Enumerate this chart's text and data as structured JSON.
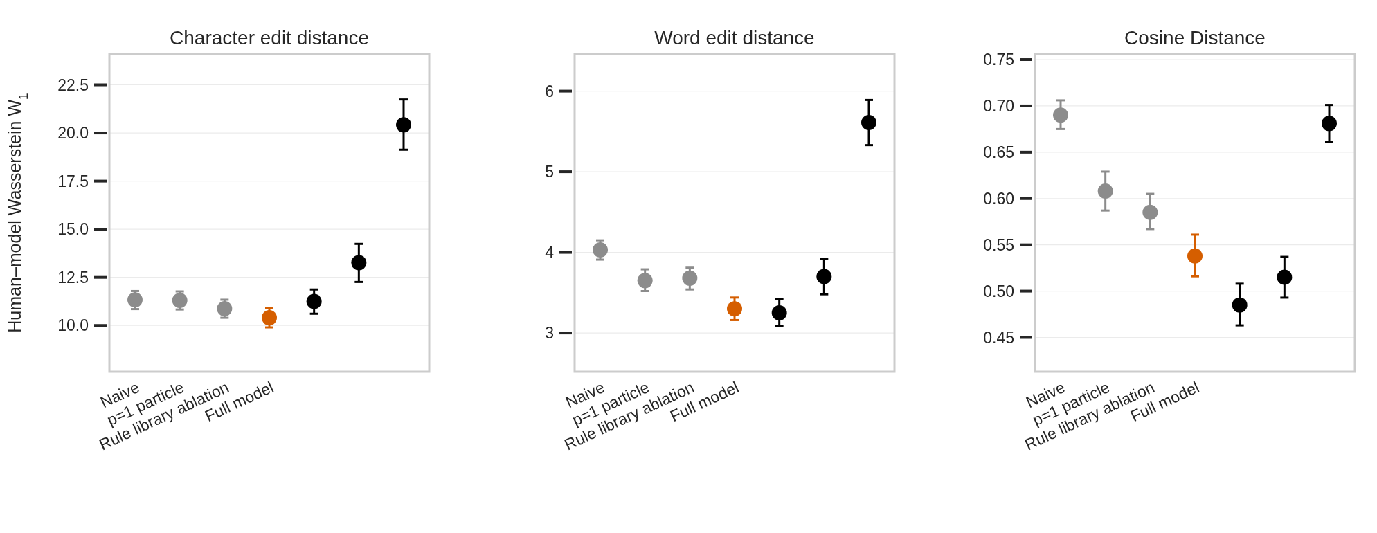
{
  "chart_data": [
    {
      "type": "scatter",
      "title": "Character edit distance",
      "ylabel": "Human–model Wasserstein W$_{1}$",
      "categories": [
        "Naive",
        "p=1 particle",
        "Rule library ablation",
        "Full model",
        null,
        null,
        null
      ],
      "marker": "circle",
      "grid": "y",
      "series": [
        {
          "colors": [
            "#8c8c8c",
            "#8c8c8c",
            "#8c8c8c",
            "#d55e00",
            "#000000",
            "#000000",
            "#000000"
          ],
          "values": [
            11.33,
            11.3,
            10.87,
            10.4,
            11.25,
            13.26,
            20.42
          ],
          "errors": [
            [
              10.85,
              11.79
            ],
            [
              10.83,
              11.77
            ],
            [
              10.4,
              11.34
            ],
            [
              9.9,
              10.9
            ],
            [
              10.61,
              11.87
            ],
            [
              12.26,
              14.24
            ],
            [
              19.13,
              21.74
            ]
          ]
        }
      ],
      "ylim": [
        7.6,
        24.1
      ],
      "yticks": [
        {
          "value": 10,
          "label": "10.0"
        },
        12.5,
        {
          "value": 15,
          "label": "15.0"
        },
        17.5,
        {
          "value": 20,
          "label": "20.0"
        },
        22.5
      ]
    },
    {
      "type": "scatter",
      "title": "Word edit distance",
      "categories": [
        "Naive",
        "p=1 particle",
        "Rule library ablation",
        "Full model",
        null,
        null,
        null
      ],
      "marker": "circle",
      "grid": "y",
      "series": [
        {
          "colors": [
            "#8c8c8c",
            "#8c8c8c",
            "#8c8c8c",
            "#d55e00",
            "#000000",
            "#000000",
            "#000000"
          ],
          "values": [
            4.03,
            3.65,
            3.68,
            3.3,
            3.25,
            3.7,
            5.61
          ],
          "errors": [
            [
              3.91,
              4.15
            ],
            [
              3.52,
              3.79
            ],
            [
              3.54,
              3.81
            ],
            [
              3.16,
              3.44
            ],
            [
              3.09,
              3.42
            ],
            [
              3.48,
              3.92
            ],
            [
              5.33,
              5.89
            ]
          ]
        }
      ],
      "ylim": [
        2.52,
        6.46
      ],
      "yticks": [
        3,
        4,
        5,
        6
      ]
    },
    {
      "type": "scatter",
      "title": "Cosine Distance",
      "categories": [
        "Naive",
        "p=1 particle",
        "Rule library ablation",
        "Full model",
        null,
        null,
        null
      ],
      "marker": "circle",
      "grid": "y",
      "series": [
        {
          "colors": [
            "#8c8c8c",
            "#8c8c8c",
            "#8c8c8c",
            "#d55e00",
            "#000000",
            "#000000",
            "#000000"
          ],
          "values": [
            0.69,
            0.608,
            0.585,
            0.538,
            0.485,
            0.515,
            0.681
          ],
          "errors": [
            [
              0.675,
              0.706
            ],
            [
              0.587,
              0.629
            ],
            [
              0.567,
              0.605
            ],
            [
              0.516,
              0.561
            ],
            [
              0.463,
              0.508
            ],
            [
              0.493,
              0.537
            ],
            [
              0.661,
              0.701
            ]
          ]
        }
      ],
      "ylim": [
        0.413,
        0.756
      ],
      "yticks": [
        0.45,
        {
          "value": 0.5,
          "label": "0.50"
        },
        0.55,
        {
          "value": 0.6,
          "label": "0.60"
        },
        0.65,
        {
          "value": 0.7,
          "label": "0.70"
        },
        0.75
      ]
    }
  ]
}
